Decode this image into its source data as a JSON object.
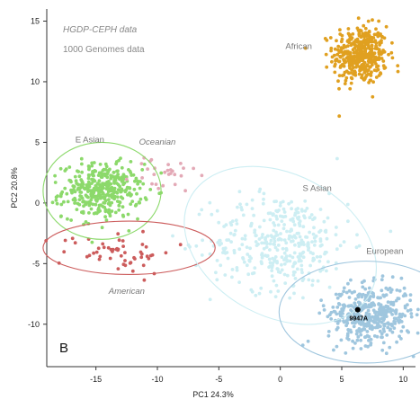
{
  "chart_data": {
    "type": "scatter",
    "panel_label": "B",
    "xlabel": "PC1  24.3%",
    "ylabel": "PC2  20.8%",
    "xlim": [
      -19,
      11
    ],
    "ylim": [
      -13.5,
      16
    ],
    "xticks": [
      -15,
      -10,
      -5,
      0,
      5,
      10
    ],
    "yticks": [
      -10,
      -5,
      0,
      5,
      10,
      15
    ],
    "legend": {
      "placement": "top-left",
      "entries": [
        {
          "label": "HGDP-CEPH data",
          "style": "italic"
        },
        {
          "label": "1000 Genomes data",
          "style": "normal"
        }
      ]
    },
    "groups": [
      {
        "label": "African",
        "color": "#e0a020",
        "center": [
          6.5,
          12.2
        ],
        "spread": [
          1.1,
          1.2
        ],
        "n": 420,
        "ellipse": null,
        "label_pos": [
          1.5,
          12.7
        ],
        "label_style": "normal"
      },
      {
        "label": "E Asian",
        "color": "#8cd96b",
        "center": [
          -14.5,
          1.0
        ],
        "spread": [
          1.6,
          1.1
        ],
        "n": 380,
        "ellipse": {
          "center": [
            -14.5,
            1.0
          ],
          "rx": 4.8,
          "ry": 4.0
        },
        "label_pos": [
          -15.5,
          5.0
        ],
        "label_style": "normal"
      },
      {
        "label": "Oceanian",
        "color": "#e3a9b6",
        "center": [
          -9.5,
          2.3
        ],
        "spread": [
          1.4,
          0.8
        ],
        "n": 28,
        "ellipse": null,
        "label_pos": [
          -10.0,
          4.8
        ],
        "label_style": "italic"
      },
      {
        "label": "American",
        "color": "#cc5c5c",
        "center": [
          -13.2,
          -4.0
        ],
        "spread": [
          2.3,
          0.9
        ],
        "n": 55,
        "ellipse": {
          "center": [
            -12.3,
            -3.7
          ],
          "rx": 7.0,
          "ry": 2.2
        },
        "label_pos": [
          -12.5,
          -7.5
        ],
        "label_style": "italic"
      },
      {
        "label": "S Asian",
        "color": "#cdeef3",
        "center": [
          0.0,
          -3.2
        ],
        "spread": [
          2.8,
          2.0
        ],
        "n": 380,
        "ellipse": {
          "center": [
            0.0,
            -3.5
          ],
          "rx": 5.8,
          "ry": 8.4,
          "rotate": -62
        },
        "label_pos": [
          3.0,
          1.0
        ],
        "label_style": "normal"
      },
      {
        "label": "European",
        "color": "#9fc6de",
        "center": [
          7.3,
          -9.2
        ],
        "spread": [
          1.7,
          1.2
        ],
        "n": 420,
        "ellipse": {
          "center": [
            7.0,
            -9.0
          ],
          "rx": 7.1,
          "ry": 4.2
        },
        "label_pos": [
          8.5,
          -4.2
        ],
        "label_style": "normal"
      }
    ],
    "highlight": {
      "label": "9947A",
      "x": 6.3,
      "y": -8.8,
      "color": "#000000"
    }
  }
}
